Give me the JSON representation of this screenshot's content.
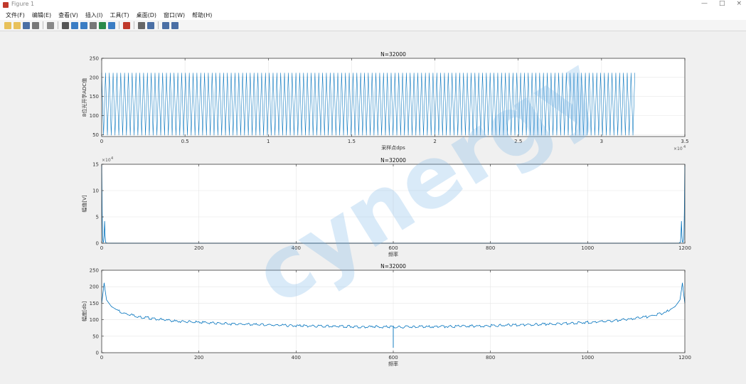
{
  "window": {
    "title": "Figure 1",
    "controls": [
      "—",
      "□",
      "×"
    ]
  },
  "menu": [
    "文件(F)",
    "编辑(E)",
    "查看(V)",
    "插入(I)",
    "工具(T)",
    "桌面(D)",
    "窗口(W)",
    "帮助(H)"
  ],
  "toolbar_icons": [
    "new-figure-icon",
    "open-file-icon",
    "save-icon",
    "print-icon",
    "sep",
    "pointer-icon",
    "sep",
    "zoom-in-icon",
    "zoom-out-icon",
    "pan-icon",
    "rotate-3d-icon",
    "data-cursor-icon",
    "brush-icon",
    "sep",
    "link-plot-icon",
    "sep",
    "insert-colorbar-icon",
    "insert-legend-icon",
    "sep",
    "hide-plot-tools-icon",
    "show-plot-tools-icon"
  ],
  "watermark": "cynergy",
  "colors": {
    "line": "#0072bd",
    "axes_bg": "#ffffff",
    "grid": "#e6e6e6"
  },
  "chart_data": [
    {
      "type": "line",
      "title": "N=32000",
      "xlabel": "采样点dps",
      "ylabel": "8位光开学ADC值",
      "xlim": [
        0,
        35000
      ],
      "ylim": [
        45,
        250
      ],
      "xticks": [
        "0",
        "0.5",
        "1",
        "1.5",
        "2",
        "2.5",
        "3",
        "3.5"
      ],
      "xtick_values": [
        0,
        5000,
        10000,
        15000,
        20000,
        25000,
        30000,
        35000
      ],
      "x_exponent": "×10",
      "x_exponent_power": "4",
      "yticks": [
        "50",
        "100",
        "150",
        "200",
        "250"
      ],
      "ytick_values": [
        50,
        100,
        150,
        200,
        250
      ],
      "series": [
        {
          "x_range": [
            0,
            32000
          ],
          "min": 48,
          "max": 212,
          "cycles": 140
        }
      ]
    },
    {
      "type": "line",
      "title": "N=32000",
      "xlabel": "频率",
      "ylabel": "幅值[V]",
      "xlim": [
        0,
        1200
      ],
      "ylim": [
        0,
        150000
      ],
      "xticks": [
        "0",
        "200",
        "400",
        "600",
        "800",
        "1000",
        "1200"
      ],
      "xtick_values": [
        0,
        200,
        400,
        600,
        800,
        1000,
        1200
      ],
      "yticks": [
        "0",
        "5",
        "10",
        "15"
      ],
      "ytick_values": [
        0,
        50000,
        100000,
        150000
      ],
      "y_exponent": "×10",
      "y_exponent_power": "4",
      "series": [
        {
          "points": [
            [
              0,
              150000
            ],
            [
              1,
              60000
            ],
            [
              2,
              8000
            ],
            [
              3,
              1500
            ],
            [
              4,
              3000
            ],
            [
              5,
              15000
            ],
            [
              6,
              42000
            ],
            [
              7,
              14000
            ],
            [
              8,
              2000
            ],
            [
              9,
              600
            ],
            [
              12,
              200
            ],
            [
              20,
              80
            ],
            [
              100,
              20
            ],
            [
              600,
              10
            ],
            [
              1100,
              20
            ],
            [
              1180,
              80
            ],
            [
              1188,
              200
            ],
            [
              1191,
              2000
            ],
            [
              1192,
              14000
            ],
            [
              1193,
              42000
            ],
            [
              1194,
              15000
            ],
            [
              1195,
              3000
            ],
            [
              1196,
              1500
            ],
            [
              1198,
              8000
            ],
            [
              1199,
              60000
            ],
            [
              1200,
              150000
            ]
          ]
        }
      ]
    },
    {
      "type": "line",
      "title": "N=32000",
      "xlabel": "频率",
      "ylabel": "幅度[db]",
      "xlim": [
        0,
        1200
      ],
      "ylim": [
        0,
        250
      ],
      "xticks": [
        "0",
        "200",
        "400",
        "600",
        "800",
        "1000",
        "1200"
      ],
      "xtick_values": [
        0,
        200,
        400,
        600,
        800,
        1000,
        1200
      ],
      "yticks": [
        "0",
        "50",
        "100",
        "150",
        "200",
        "250"
      ],
      "ytick_values": [
        0,
        50,
        100,
        150,
        200,
        250
      ],
      "series": [
        {
          "points": [
            [
              0,
              150
            ],
            [
              3,
              185
            ],
            [
              5,
              212
            ],
            [
              7,
              190
            ],
            [
              10,
              160
            ],
            [
              20,
              140
            ],
            [
              40,
              122
            ],
            [
              80,
              108
            ],
            [
              150,
              96
            ],
            [
              250,
              88
            ],
            [
              400,
              82
            ],
            [
              500,
              79
            ],
            [
              600,
              78
            ],
            [
              700,
              79
            ],
            [
              800,
              82
            ],
            [
              950,
              88
            ],
            [
              1050,
              96
            ],
            [
              1120,
              108
            ],
            [
              1160,
              122
            ],
            [
              1180,
              140
            ],
            [
              1190,
              160
            ],
            [
              1193,
              190
            ],
            [
              1195,
              212
            ],
            [
              1197,
              185
            ],
            [
              1200,
              150
            ]
          ],
          "noise": 4,
          "dip": {
            "x": 600,
            "y": 15
          }
        }
      ]
    }
  ]
}
